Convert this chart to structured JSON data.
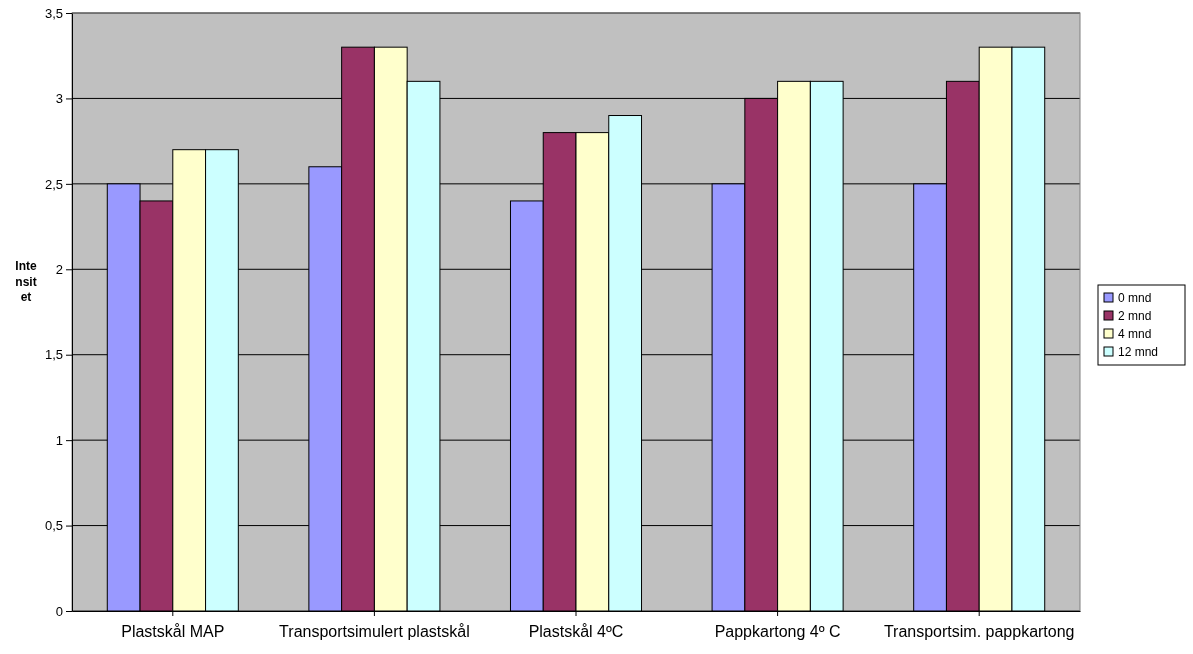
{
  "chart_data": {
    "type": "bar",
    "ylabel": "Intensitet",
    "categories": [
      "Plastskål MAP",
      "Transportsimulert plastskål",
      "Plastskål 4ºC",
      "Pappkartong 4º C",
      "Transportsim.  pappkartong"
    ],
    "series": [
      {
        "name": "0 mnd",
        "color": "#9999ff",
        "values": [
          2.5,
          2.6,
          2.4,
          2.5,
          2.5
        ]
      },
      {
        "name": "2 mnd",
        "color": "#993366",
        "values": [
          2.4,
          3.3,
          2.8,
          3.0,
          3.1
        ]
      },
      {
        "name": "4 mnd",
        "color": "#ffffcc",
        "values": [
          2.7,
          3.3,
          2.8,
          3.1,
          3.3
        ]
      },
      {
        "name": "12 mnd",
        "color": "#ccffff",
        "values": [
          2.7,
          3.1,
          2.9,
          3.1,
          3.3
        ]
      }
    ],
    "ylim": [
      0,
      3.5
    ],
    "yticks": [
      {
        "value": 0,
        "label": "0"
      },
      {
        "value": 0.5,
        "label": "0,5"
      },
      {
        "value": 1,
        "label": "1"
      },
      {
        "value": 1.5,
        "label": "1,5"
      },
      {
        "value": 2,
        "label": "2"
      },
      {
        "value": 2.5,
        "label": "2,5"
      },
      {
        "value": 3,
        "label": "3"
      },
      {
        "value": 3.5,
        "label": "3,5"
      }
    ],
    "grid": "y",
    "legend": "right"
  }
}
